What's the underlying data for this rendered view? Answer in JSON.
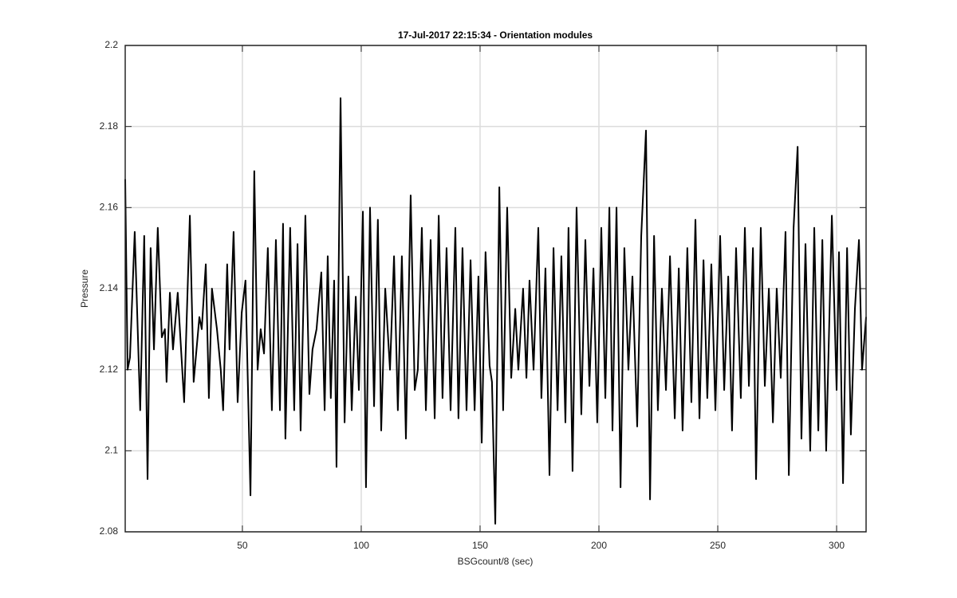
{
  "chart_data": {
    "type": "line",
    "title": "17-Jul-2017 22:15:34 - Orientation modules",
    "x_label": "BSGcount/8 (sec)",
    "y_label": "Pressure",
    "color": "#000000",
    "grid": true,
    "xlim": [
      0.7,
      312.4
    ],
    "xticks": [
      50,
      100,
      150,
      200,
      250,
      300
    ],
    "ylim": [
      2.08,
      2.2
    ],
    "yticks": [
      2.08,
      2.1,
      2.12,
      2.14,
      2.16,
      2.18,
      2.2
    ],
    "x": [
      0.7,
      1.7,
      2.7,
      4.7,
      7.0,
      8.7,
      10.1,
      11.4,
      12.8,
      14.4,
      16.1,
      17.4,
      18.1,
      19.5,
      20.8,
      22.8,
      25.5,
      27.9,
      29.5,
      31.9,
      32.9,
      34.6,
      35.9,
      37.2,
      39.3,
      40.9,
      41.9,
      43.6,
      44.6,
      46.3,
      48.0,
      49.7,
      51.3,
      53.4,
      55.0,
      56.4,
      57.7,
      59.1,
      60.7,
      62.4,
      64.1,
      65.8,
      67.1,
      68.1,
      70.1,
      71.8,
      73.2,
      74.5,
      76.5,
      78.2,
      79.5,
      81.2,
      83.2,
      84.6,
      85.9,
      87.2,
      88.6,
      89.6,
      91.3,
      93.0,
      94.6,
      96.0,
      97.7,
      99.0,
      100.7,
      102.0,
      103.7,
      105.4,
      107.0,
      108.4,
      110.1,
      112.1,
      113.8,
      115.4,
      117.1,
      118.8,
      120.8,
      122.5,
      123.8,
      125.5,
      127.2,
      129.2,
      130.9,
      132.6,
      134.2,
      135.9,
      137.6,
      139.6,
      140.9,
      142.6,
      144.3,
      146.0,
      147.7,
      149.3,
      150.7,
      152.3,
      154.0,
      155.0,
      156.4,
      158.1,
      159.7,
      161.4,
      163.1,
      164.8,
      166.1,
      168.1,
      169.5,
      170.8,
      172.5,
      174.5,
      175.8,
      177.5,
      179.2,
      180.9,
      182.6,
      184.2,
      185.9,
      187.2,
      188.9,
      190.6,
      192.6,
      194.3,
      196.0,
      197.7,
      199.3,
      201.0,
      202.7,
      204.4,
      205.7,
      207.4,
      209.1,
      210.7,
      212.4,
      214.1,
      216.1,
      217.8,
      219.8,
      221.5,
      223.2,
      224.8,
      226.5,
      228.2,
      229.9,
      231.9,
      233.6,
      235.2,
      237.2,
      238.9,
      240.6,
      242.3,
      244.0,
      245.6,
      247.3,
      249.0,
      251.0,
      252.7,
      254.4,
      256.0,
      257.7,
      259.7,
      261.4,
      263.1,
      264.8,
      266.1,
      268.1,
      269.8,
      271.5,
      273.2,
      274.8,
      276.5,
      278.5,
      279.9,
      281.9,
      283.6,
      285.2,
      286.9,
      288.9,
      290.6,
      292.3,
      294.0,
      295.6,
      298.0,
      300.0,
      301.0,
      302.7,
      304.4,
      306.0,
      307.7,
      309.4,
      310.7,
      312.4
    ],
    "values": [
      2.167,
      2.12,
      2.123,
      2.154,
      2.11,
      2.153,
      2.093,
      2.15,
      2.125,
      2.155,
      2.128,
      2.13,
      2.117,
      2.139,
      2.125,
      2.139,
      2.112,
      2.158,
      2.117,
      2.133,
      2.13,
      2.146,
      2.113,
      2.14,
      2.13,
      2.12,
      2.11,
      2.146,
      2.125,
      2.154,
      2.112,
      2.134,
      2.142,
      2.089,
      2.169,
      2.12,
      2.13,
      2.124,
      2.15,
      2.11,
      2.152,
      2.11,
      2.156,
      2.103,
      2.155,
      2.11,
      2.151,
      2.105,
      2.158,
      2.114,
      2.125,
      2.13,
      2.144,
      2.11,
      2.148,
      2.113,
      2.142,
      2.096,
      2.187,
      2.107,
      2.143,
      2.11,
      2.138,
      2.115,
      2.159,
      2.091,
      2.16,
      2.111,
      2.157,
      2.105,
      2.14,
      2.12,
      2.148,
      2.11,
      2.148,
      2.103,
      2.163,
      2.115,
      2.12,
      2.155,
      2.11,
      2.152,
      2.108,
      2.158,
      2.113,
      2.15,
      2.11,
      2.155,
      2.108,
      2.15,
      2.11,
      2.147,
      2.11,
      2.143,
      2.102,
      2.149,
      2.121,
      2.117,
      2.082,
      2.165,
      2.11,
      2.16,
      2.118,
      2.135,
      2.12,
      2.14,
      2.118,
      2.142,
      2.12,
      2.155,
      2.113,
      2.145,
      2.094,
      2.15,
      2.11,
      2.148,
      2.107,
      2.155,
      2.095,
      2.16,
      2.109,
      2.152,
      2.116,
      2.145,
      2.107,
      2.155,
      2.113,
      2.16,
      2.105,
      2.16,
      2.091,
      2.15,
      2.12,
      2.143,
      2.106,
      2.153,
      2.179,
      2.088,
      2.153,
      2.11,
      2.14,
      2.115,
      2.148,
      2.108,
      2.145,
      2.105,
      2.15,
      2.112,
      2.157,
      2.108,
      2.147,
      2.113,
      2.146,
      2.11,
      2.153,
      2.115,
      2.143,
      2.105,
      2.15,
      2.113,
      2.155,
      2.116,
      2.15,
      2.093,
      2.155,
      2.116,
      2.14,
      2.107,
      2.14,
      2.118,
      2.154,
      2.094,
      2.155,
      2.175,
      2.103,
      2.151,
      2.1,
      2.155,
      2.105,
      2.152,
      2.1,
      2.158,
      2.115,
      2.149,
      2.092,
      2.15,
      2.104,
      2.135,
      2.152,
      2.12,
      2.133
    ]
  }
}
